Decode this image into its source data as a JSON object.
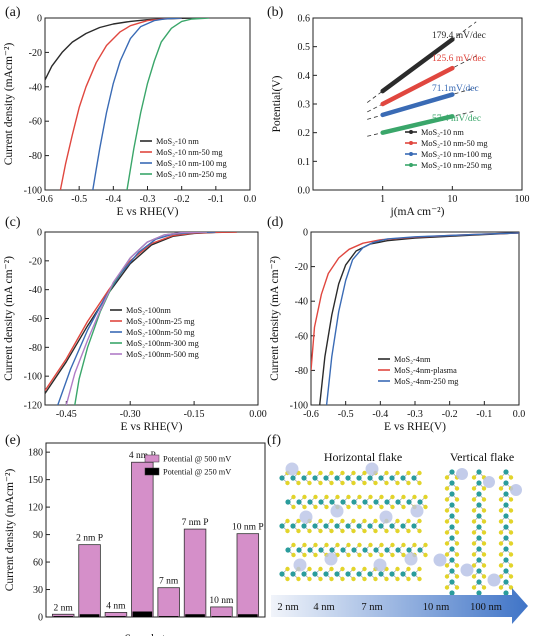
{
  "panels": [
    "(a)",
    "(b)",
    "(c)",
    "(d)",
    "(e)",
    "(f)"
  ],
  "chart_data": [
    {
      "panel": "(a)",
      "type": "line",
      "xlabel": "E vs RHE(V)",
      "ylabel": "Current density (mAcm⁻²)",
      "xlim": [
        -0.6,
        0.0
      ],
      "ylim": [
        -100,
        0
      ],
      "xticks": [
        -0.6,
        -0.5,
        -0.4,
        -0.3,
        -0.2,
        -0.1,
        0.0
      ],
      "xtick_labels": [
        "-0.6",
        "-0.5",
        "-0.4",
        "-0.3",
        "-0.2",
        "-0.1",
        "0.0"
      ],
      "yticks": [
        -100,
        -80,
        -60,
        -40,
        -20,
        0
      ],
      "ytick_labels": [
        "-100",
        "-80",
        "-60",
        "-40",
        "-20",
        "0"
      ],
      "legend_position": "bottom-right",
      "series": [
        {
          "name": "MoS₂-10 nm",
          "color": "#2b2b2b",
          "x": [
            -0.6,
            -0.58,
            -0.55,
            -0.52,
            -0.48,
            -0.44,
            -0.4,
            -0.35,
            -0.3,
            -0.25,
            -0.2,
            -0.15
          ],
          "y": [
            -36,
            -28,
            -20,
            -14,
            -9,
            -5.5,
            -3.5,
            -2,
            -1,
            -0.5,
            -0.2,
            0
          ]
        },
        {
          "name": "MoS₂-10 nm-50 mg",
          "color": "#e0473f",
          "x": [
            -0.555,
            -0.54,
            -0.52,
            -0.5,
            -0.48,
            -0.45,
            -0.42,
            -0.38,
            -0.35,
            -0.3,
            -0.25,
            -0.2
          ],
          "y": [
            -100,
            -85,
            -68,
            -52,
            -40,
            -26,
            -16,
            -8,
            -4.5,
            -1.5,
            -0.4,
            0
          ]
        },
        {
          "name": "MoS₂-10 nm-100 mg",
          "color": "#3a6bb5",
          "x": [
            -0.46,
            -0.45,
            -0.44,
            -0.42,
            -0.4,
            -0.38,
            -0.35,
            -0.32,
            -0.28,
            -0.25,
            -0.2
          ],
          "y": [
            -100,
            -88,
            -76,
            -55,
            -38,
            -25,
            -12,
            -5,
            -1.5,
            -0.5,
            0
          ]
        },
        {
          "name": "MoS₂-10 nm-250 mg",
          "color": "#3aa66a",
          "x": [
            -0.36,
            -0.35,
            -0.34,
            -0.32,
            -0.3,
            -0.28,
            -0.26,
            -0.23,
            -0.2,
            -0.17,
            -0.12
          ],
          "y": [
            -100,
            -88,
            -76,
            -55,
            -38,
            -25,
            -14,
            -6,
            -2,
            -0.6,
            0
          ]
        }
      ]
    },
    {
      "panel": "(b)",
      "type": "line",
      "xscale": "log",
      "xlabel": "j(mA cm⁻²)",
      "ylabel": "Potential(V)",
      "xlim": [
        0.1,
        100
      ],
      "ylim": [
        0.0,
        0.6
      ],
      "xticks": [
        1,
        10,
        100
      ],
      "xtick_labels": [
        "1",
        "10",
        "100"
      ],
      "yticks": [
        0.0,
        0.1,
        0.2,
        0.3,
        0.4,
        0.5,
        0.6
      ],
      "ytick_labels": [
        "0.0",
        "0.1",
        "0.2",
        "0.3",
        "0.4",
        "0.5",
        "0.6"
      ],
      "legend_position": "bottom-right",
      "annotations": [
        "179.4 mV/dec",
        "125.6 mV/dec",
        "71.1mV/dec",
        "57.4 mV/dec"
      ],
      "series": [
        {
          "name": "MoS₂-10 nm",
          "color": "#2b2b2b",
          "x": [
            1,
            10
          ],
          "y": [
            0.345,
            0.525
          ]
        },
        {
          "name": "MoS₂-10 nm-50 mg",
          "color": "#e0473f",
          "x": [
            1,
            10
          ],
          "y": [
            0.3,
            0.425
          ]
        },
        {
          "name": "MoS₂-10 nm-100 mg",
          "color": "#3a6bb5",
          "x": [
            1,
            10
          ],
          "y": [
            0.262,
            0.333
          ]
        },
        {
          "name": "MoS₂-10 nm-250 mg",
          "color": "#3aa66a",
          "x": [
            1,
            10
          ],
          "y": [
            0.2,
            0.257
          ]
        }
      ]
    },
    {
      "panel": "(c)",
      "type": "line",
      "xlabel": "E vs RHE(V)",
      "ylabel": "Current density (mA cm⁻²)",
      "xlim": [
        -0.5,
        0.0
      ],
      "ylim": [
        -120,
        0
      ],
      "xticks": [
        -0.45,
        -0.3,
        -0.15,
        0.0
      ],
      "xtick_labels": [
        "-0.45",
        "-0.30",
        "-0.15",
        "0.00"
      ],
      "yticks": [
        -120,
        -100,
        -80,
        -60,
        -40,
        -20,
        0
      ],
      "ytick_labels": [
        "-120",
        "-100",
        "-80",
        "-60",
        "-40",
        "-20",
        "0"
      ],
      "legend_position": "bottom-right",
      "series": [
        {
          "name": "MoS₂-100nm",
          "color": "#2b2b2b",
          "x": [
            -0.5,
            -0.45,
            -0.4,
            -0.35,
            -0.3,
            -0.25,
            -0.2,
            -0.15,
            -0.1,
            -0.05
          ],
          "y": [
            -112,
            -90,
            -65,
            -42,
            -22,
            -9,
            -3,
            -1,
            -0.3,
            0
          ]
        },
        {
          "name": "MoS₂-100nm-25 mg",
          "color": "#e0473f",
          "x": [
            -0.5,
            -0.45,
            -0.4,
            -0.35,
            -0.3,
            -0.25,
            -0.2,
            -0.15,
            -0.1,
            -0.05
          ],
          "y": [
            -110,
            -88,
            -62,
            -40,
            -20,
            -8,
            -2.5,
            -0.8,
            -0.2,
            0
          ]
        },
        {
          "name": "MoS₂-100nm-50 mg",
          "color": "#3a6bb5",
          "x": [
            -0.47,
            -0.44,
            -0.4,
            -0.36,
            -0.32,
            -0.28,
            -0.24,
            -0.2,
            -0.15,
            -0.1
          ],
          "y": [
            -120,
            -95,
            -68,
            -46,
            -28,
            -14,
            -5,
            -1.5,
            -0.4,
            0
          ]
        },
        {
          "name": "MoS₂-100nm-300 mg",
          "color": "#3aa66a",
          "x": [
            -0.43,
            -0.42,
            -0.4,
            -0.37,
            -0.34,
            -0.3,
            -0.26,
            -0.22,
            -0.18,
            -0.12
          ],
          "y": [
            -120,
            -102,
            -80,
            -55,
            -36,
            -18,
            -7,
            -2,
            -0.5,
            0
          ]
        },
        {
          "name": "MoS₂-100nm-500 mg",
          "color": "#b07cc6",
          "x": [
            -0.45,
            -0.43,
            -0.4,
            -0.37,
            -0.34,
            -0.3,
            -0.26,
            -0.22,
            -0.18,
            -0.12
          ],
          "y": [
            -120,
            -98,
            -75,
            -54,
            -35,
            -18,
            -7,
            -2,
            -0.5,
            0
          ]
        }
      ]
    },
    {
      "panel": "(d)",
      "type": "line",
      "xlabel": "E vs RHE(V)",
      "ylabel": "Current density (mA cm⁻²)",
      "xlim": [
        -0.6,
        0.0
      ],
      "ylim": [
        -100,
        0
      ],
      "xticks": [
        -0.6,
        -0.5,
        -0.4,
        -0.3,
        -0.2,
        -0.1,
        0.0
      ],
      "xtick_labels": [
        "-0.6",
        "-0.5",
        "-0.4",
        "-0.3",
        "-0.2",
        "-0.1",
        "0.0"
      ],
      "yticks": [
        -100,
        -80,
        -60,
        -40,
        -20,
        0
      ],
      "ytick_labels": [
        "-100",
        "-80",
        "-60",
        "-40",
        "-20",
        "0"
      ],
      "legend_position": "bottom-center",
      "series": [
        {
          "name": "MoS₂-4nm",
          "color": "#2b2b2b",
          "x": [
            -0.575,
            -0.56,
            -0.54,
            -0.52,
            -0.5,
            -0.47,
            -0.43,
            -0.38,
            -0.3,
            -0.2,
            -0.1,
            0.0
          ],
          "y": [
            -100,
            -72,
            -48,
            -30,
            -19,
            -11,
            -7,
            -5,
            -3.5,
            -2.5,
            -1.5,
            -0.5
          ]
        },
        {
          "name": "MoS₂-4nm-plasma",
          "color": "#e0473f",
          "x": [
            -0.6,
            -0.59,
            -0.57,
            -0.55,
            -0.52,
            -0.49,
            -0.45,
            -0.4,
            -0.3,
            -0.2,
            -0.1,
            0.0
          ],
          "y": [
            -80,
            -55,
            -36,
            -24,
            -15,
            -10,
            -6.5,
            -4.5,
            -3,
            -2,
            -1.2,
            -0.5
          ]
        },
        {
          "name": "MoS₂-4nm-250 mg",
          "color": "#3a6bb5",
          "x": [
            -0.555,
            -0.54,
            -0.52,
            -0.5,
            -0.48,
            -0.45,
            -0.42,
            -0.38,
            -0.3,
            -0.2,
            -0.1,
            0.0
          ],
          "y": [
            -100,
            -72,
            -46,
            -28,
            -16,
            -9,
            -6,
            -4,
            -2.8,
            -2,
            -1.2,
            -0.5
          ]
        }
      ]
    },
    {
      "panel": "(e)",
      "type": "bar",
      "xlabel": "Sample types",
      "ylabel": "Current density (mAcm⁻²)",
      "ylim": [
        0,
        190
      ],
      "yticks": [
        0,
        30,
        60,
        90,
        120,
        150,
        180
      ],
      "ytick_labels": [
        "0",
        "30",
        "60",
        "90",
        "120",
        "150",
        "180"
      ],
      "legend_position": "top-right",
      "categories": [
        "2 nm",
        "2 nm P",
        "4 nm",
        "4 nm P",
        "7 nm",
        "7 nm P",
        "10 nm",
        "10 nm P"
      ],
      "series": [
        {
          "name": "Potential @ 500 mV",
          "color": "#d58fc9",
          "values": [
            3,
            79,
            5,
            169,
            32,
            96,
            11,
            91
          ]
        },
        {
          "name": "Potential @ 250 mV",
          "color": "#000000",
          "values": [
            1,
            3,
            1,
            6,
            1,
            3,
            1,
            3
          ]
        }
      ]
    }
  ],
  "schematic": {
    "panel": "(f)",
    "left_title": "Horizontal flake",
    "right_title": "Vertical flake",
    "arrow_labels": [
      "2 nm",
      "4 nm",
      "7 nm",
      "10 nm",
      "100 nm"
    ],
    "colors": {
      "mo": "#2a9c9c",
      "s": "#e2d42a",
      "bubble": "#b9c3e6",
      "arrow_start": "#f1f4fa",
      "arrow_end": "#3f74c7"
    }
  }
}
